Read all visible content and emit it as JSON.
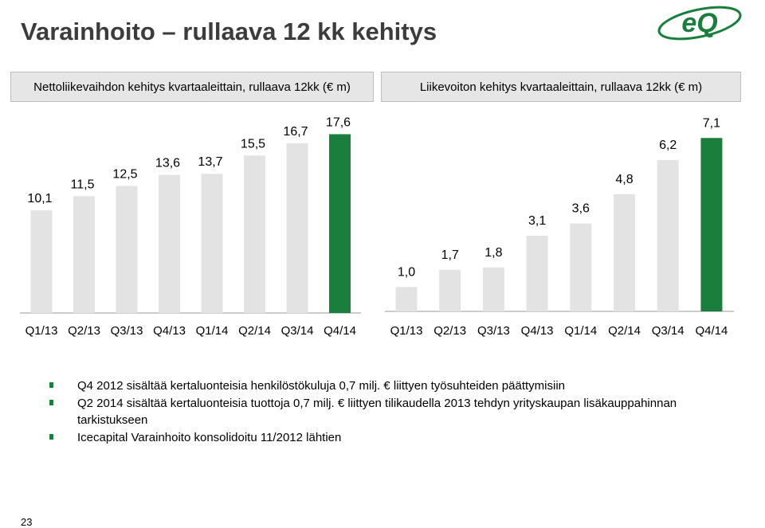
{
  "page": {
    "title": "Varainhoito – rullaava 12 kk kehitys",
    "page_number": "23",
    "logo_text": "eQ"
  },
  "colors": {
    "bar_default": "#e3e3e3",
    "bar_highlight": "#1a7f3c",
    "axis": "#9a9a9a",
    "title": "#3c3c3c",
    "bullet": "#1a7f3c",
    "header_bg": "#e6e6e6"
  },
  "chart_data": [
    {
      "type": "bar",
      "title": "Nettoliikevaihdon kehitys kvartaaleittain, rullaava 12kk (€ m)",
      "categories": [
        "Q1/13",
        "Q2/13",
        "Q3/13",
        "Q4/13",
        "Q1/14",
        "Q2/14",
        "Q3/14",
        "Q4/14"
      ],
      "values": [
        10.1,
        11.5,
        12.5,
        13.6,
        13.7,
        15.5,
        16.7,
        17.6
      ],
      "value_labels": [
        "10,1",
        "11,5",
        "12,5",
        "13,6",
        "13,7",
        "15,5",
        "16,7",
        "17,6"
      ],
      "highlight_index": 7,
      "ylim": [
        0,
        18.5
      ],
      "grid": false
    },
    {
      "type": "bar",
      "title": "Liikevoiton kehitys kvartaaleittain, rullaava 12kk (€ m)",
      "categories": [
        "Q1/13",
        "Q2/13",
        "Q3/13",
        "Q4/13",
        "Q1/14",
        "Q2/14",
        "Q3/14",
        "Q4/14"
      ],
      "values": [
        1.0,
        1.7,
        1.8,
        3.1,
        3.6,
        4.8,
        6.2,
        7.1
      ],
      "value_labels": [
        "1,0",
        "1,7",
        "1,8",
        "3,1",
        "3,6",
        "4,8",
        "6,2",
        "7,1"
      ],
      "highlight_index": 7,
      "ylim": [
        0,
        7.5
      ],
      "grid": false
    }
  ],
  "notes": [
    "Q4 2012 sisältää kertaluonteisia henkilöstökuluja 0,7 milj. € liittyen työsuhteiden päättymisiin",
    "Q2 2014 sisältää kertaluonteisia tuottoja 0,7 milj. € liittyen tilikaudella 2013 tehdyn yrityskaupan lisäkauppahinnan tarkistukseen",
    "Icecapital Varainhoito konsolidoitu 11/2012 lähtien"
  ]
}
